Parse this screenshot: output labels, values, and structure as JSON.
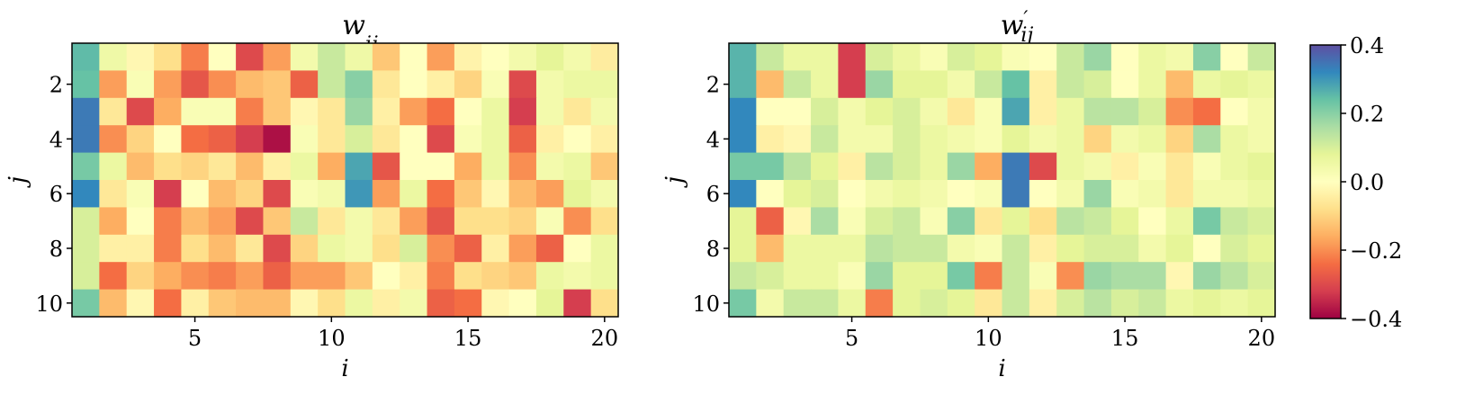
{
  "chart_data": [
    {
      "type": "heatmap",
      "title": "w_ij",
      "title_main": "w",
      "title_sub": "ij",
      "title_prime": "",
      "xlabel": "i",
      "ylabel": "j",
      "x_range": [
        1,
        20
      ],
      "y_range": [
        1,
        10
      ],
      "x_ticks": [
        5,
        10,
        15,
        20
      ],
      "y_ticks": [
        2,
        4,
        6,
        8,
        10
      ],
      "x_tick_labels": [
        "5",
        "10",
        "15",
        "20"
      ],
      "y_tick_labels": [
        "2",
        "4",
        "6",
        "8",
        "10"
      ],
      "grid": false,
      "values": [
        [
          0.25,
          0.05,
          -0.02,
          -0.08,
          -0.22,
          0.0,
          -0.3,
          -0.18,
          0.04,
          0.12,
          0.05,
          -0.12,
          0.0,
          -0.18,
          -0.03,
          0.0,
          0.04,
          0.08,
          0.04,
          -0.05
        ],
        [
          0.24,
          -0.18,
          0.02,
          -0.18,
          -0.28,
          -0.2,
          -0.14,
          -0.12,
          -0.26,
          0.12,
          0.2,
          -0.06,
          0.0,
          -0.04,
          -0.1,
          0.02,
          -0.3,
          0.04,
          0.06,
          0.06
        ],
        [
          0.34,
          -0.06,
          -0.3,
          -0.16,
          0.02,
          0.02,
          -0.22,
          -0.12,
          -0.02,
          -0.06,
          0.18,
          -0.04,
          -0.18,
          -0.24,
          0.0,
          0.06,
          -0.32,
          0.04,
          -0.06,
          0.04
        ],
        [
          0.34,
          -0.2,
          -0.1,
          0.0,
          -0.24,
          -0.26,
          -0.32,
          -0.38,
          0.02,
          -0.06,
          0.1,
          -0.06,
          0.0,
          -0.3,
          0.02,
          0.06,
          -0.26,
          -0.04,
          0.0,
          -0.04
        ],
        [
          0.22,
          0.06,
          -0.14,
          -0.08,
          -0.1,
          -0.06,
          -0.14,
          -0.04,
          0.06,
          -0.16,
          0.28,
          -0.28,
          0.0,
          0.0,
          -0.16,
          0.06,
          -0.2,
          0.04,
          0.06,
          -0.12
        ],
        [
          0.32,
          -0.06,
          0.02,
          -0.32,
          0.0,
          -0.14,
          -0.1,
          -0.3,
          0.02,
          0.04,
          0.3,
          -0.18,
          0.06,
          -0.24,
          -0.12,
          -0.02,
          -0.14,
          -0.18,
          0.08,
          0.04
        ],
        [
          0.1,
          -0.16,
          0.0,
          -0.22,
          -0.14,
          -0.18,
          -0.3,
          -0.12,
          0.12,
          -0.06,
          0.04,
          -0.06,
          -0.18,
          -0.28,
          -0.08,
          -0.08,
          -0.1,
          0.02,
          -0.2,
          -0.08
        ],
        [
          0.1,
          -0.04,
          -0.04,
          -0.22,
          -0.08,
          -0.14,
          -0.06,
          -0.3,
          -0.1,
          0.06,
          0.04,
          -0.08,
          0.1,
          -0.2,
          -0.26,
          -0.04,
          -0.18,
          -0.26,
          0.0,
          0.06
        ],
        [
          0.1,
          -0.24,
          -0.1,
          -0.16,
          -0.2,
          -0.22,
          -0.18,
          -0.26,
          -0.18,
          -0.18,
          -0.12,
          0.0,
          -0.04,
          -0.22,
          -0.08,
          -0.1,
          -0.12,
          0.06,
          0.04,
          0.06
        ],
        [
          0.22,
          -0.14,
          -0.02,
          -0.24,
          -0.04,
          -0.12,
          -0.14,
          -0.14,
          -0.02,
          -0.08,
          0.06,
          -0.04,
          0.04,
          -0.26,
          -0.24,
          -0.02,
          0.0,
          0.08,
          -0.32,
          -0.08
        ]
      ]
    },
    {
      "type": "heatmap",
      "title": "w'_ij",
      "title_main": "w",
      "title_sub": "ij",
      "title_prime": "′",
      "xlabel": "i",
      "ylabel": "j",
      "x_range": [
        1,
        20
      ],
      "y_range": [
        1,
        10
      ],
      "x_ticks": [
        5,
        10,
        15,
        20
      ],
      "y_ticks": [
        2,
        4,
        6,
        8,
        10
      ],
      "x_tick_labels": [
        "5",
        "10",
        "15",
        "20"
      ],
      "y_tick_labels": [
        "2",
        "4",
        "6",
        "8",
        "10"
      ],
      "grid": false,
      "values": [
        [
          0.26,
          0.12,
          0.06,
          0.06,
          -0.32,
          0.1,
          0.06,
          0.02,
          0.1,
          0.08,
          0.02,
          0.0,
          0.12,
          0.18,
          0.0,
          0.06,
          0.04,
          0.2,
          0.0,
          0.12
        ],
        [
          0.26,
          -0.14,
          0.12,
          0.06,
          -0.32,
          0.18,
          0.08,
          0.08,
          0.04,
          0.12,
          0.24,
          -0.04,
          0.12,
          0.1,
          0.0,
          0.06,
          -0.14,
          0.06,
          0.08,
          0.06
        ],
        [
          0.32,
          0.0,
          0.0,
          0.1,
          0.04,
          0.08,
          0.1,
          0.04,
          -0.06,
          0.02,
          0.28,
          -0.04,
          0.06,
          0.14,
          0.14,
          0.1,
          -0.2,
          -0.24,
          0.0,
          0.04
        ],
        [
          0.32,
          -0.04,
          -0.02,
          0.12,
          0.04,
          0.04,
          0.1,
          0.06,
          0.04,
          0.02,
          0.08,
          0.04,
          0.06,
          -0.1,
          0.04,
          0.06,
          -0.1,
          0.16,
          0.06,
          0.04
        ],
        [
          0.22,
          0.22,
          0.14,
          0.08,
          -0.04,
          0.14,
          0.1,
          0.06,
          0.18,
          -0.16,
          0.34,
          -0.3,
          0.06,
          0.04,
          -0.04,
          0.02,
          -0.06,
          0.02,
          0.06,
          0.08
        ],
        [
          0.32,
          0.0,
          0.08,
          0.1,
          0.0,
          0.04,
          0.06,
          0.04,
          0.0,
          0.02,
          0.34,
          0.0,
          0.04,
          0.18,
          0.02,
          0.04,
          -0.06,
          0.04,
          0.04,
          0.06
        ],
        [
          0.08,
          -0.26,
          -0.02,
          0.16,
          0.02,
          0.1,
          0.12,
          0.02,
          0.2,
          -0.06,
          0.08,
          -0.08,
          0.14,
          0.12,
          0.08,
          0.0,
          0.06,
          0.22,
          0.12,
          0.1
        ],
        [
          0.08,
          -0.14,
          0.06,
          0.06,
          0.06,
          0.14,
          0.12,
          0.12,
          0.04,
          0.02,
          0.12,
          -0.04,
          0.08,
          0.1,
          0.1,
          0.04,
          0.08,
          0.0,
          0.1,
          0.08
        ],
        [
          0.12,
          0.1,
          0.06,
          0.06,
          0.02,
          0.18,
          0.08,
          0.08,
          0.22,
          -0.22,
          0.12,
          0.02,
          -0.2,
          0.18,
          0.16,
          0.16,
          -0.02,
          0.18,
          0.14,
          0.1
        ],
        [
          0.22,
          0.04,
          0.12,
          0.12,
          0.06,
          -0.22,
          0.08,
          0.1,
          0.08,
          -0.06,
          0.12,
          -0.04,
          0.1,
          0.14,
          0.1,
          0.12,
          0.06,
          0.08,
          0.06,
          0.08
        ]
      ]
    }
  ],
  "colorbar": {
    "colormap": "Spectral",
    "range": [
      -0.4,
      0.4
    ],
    "ticks": [
      0.4,
      0.2,
      0.0,
      -0.2,
      -0.4
    ],
    "tick_labels": [
      "0.4",
      "0.2",
      "0.0",
      "−0.2",
      "−0.4"
    ]
  }
}
